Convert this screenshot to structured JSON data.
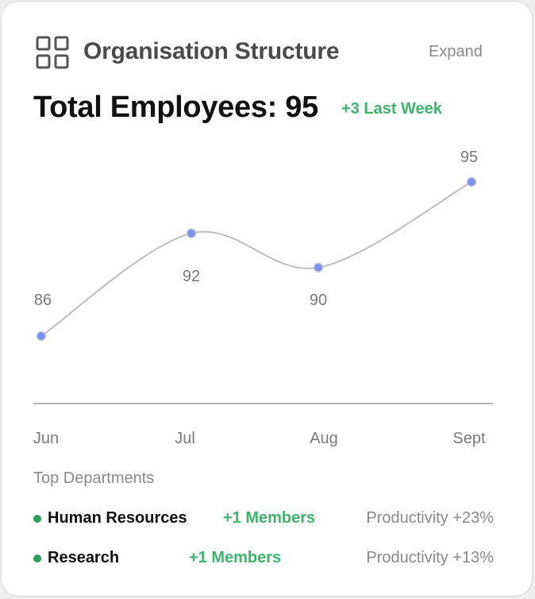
{
  "header": {
    "title": "Organisation Structure",
    "icon": "grid-icon",
    "expand_label": "Expand"
  },
  "summary": {
    "total_label": "Total Employees: 95",
    "change_label": "+3 Last Week"
  },
  "chart_data": {
    "type": "line",
    "categories": [
      "Jun",
      "Jul",
      "Aug",
      "Sept"
    ],
    "values": [
      86,
      92,
      90,
      95
    ],
    "data_labels": [
      "86",
      "92",
      "90",
      "95"
    ],
    "line_color": "#bdbdbd",
    "point_color": "#7b8ff0",
    "grid": false
  },
  "departments": {
    "label": "Top Departments",
    "items": [
      {
        "name": "Human Resources",
        "members": "+1 Members",
        "productivity": "Productivity +23%"
      },
      {
        "name": "Research",
        "members": "+1 Members",
        "productivity": "Productivity +13%"
      }
    ]
  },
  "colors": {
    "accent_green": "#3db56b",
    "bullet_green": "#2a9e59",
    "muted_text": "#8a8a8a"
  }
}
